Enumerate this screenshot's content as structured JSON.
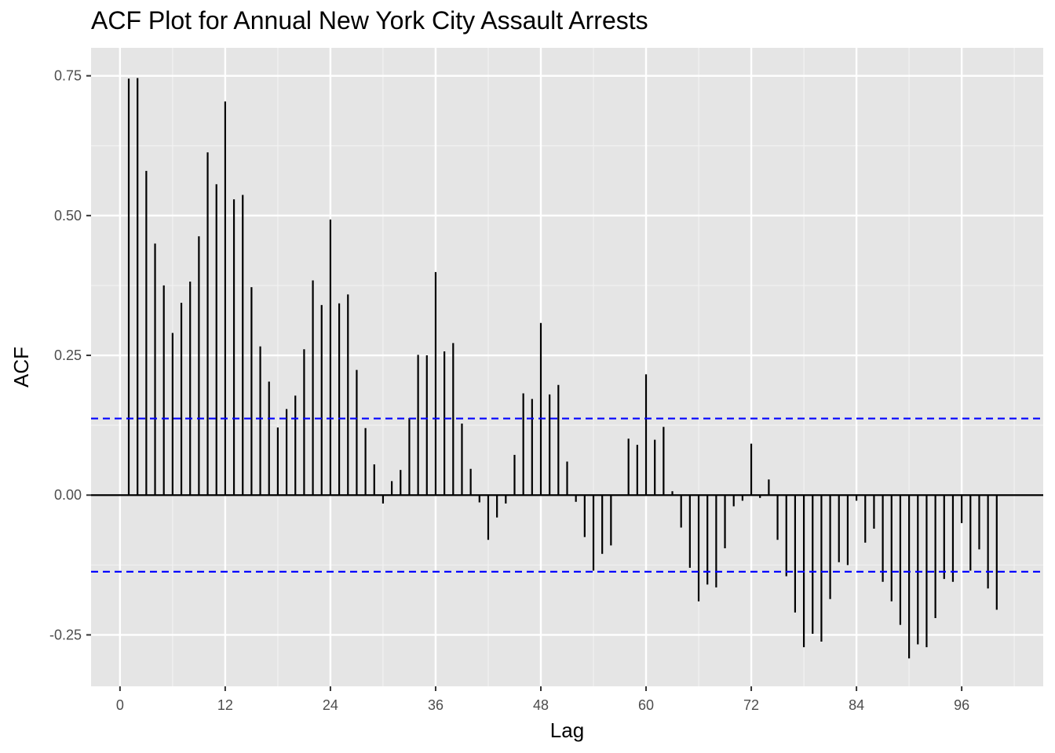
{
  "chart_data": {
    "type": "bar",
    "title": "ACF Plot for Annual New York City Assault Arrests",
    "xlabel": "Lag",
    "ylabel": "ACF",
    "xlim": [
      -3.3,
      105.3
    ],
    "ylim": [
      -0.342,
      0.8
    ],
    "x_ticks": [
      0,
      12,
      24,
      36,
      48,
      60,
      72,
      84,
      96
    ],
    "x_tick_labels": [
      "0",
      "12",
      "24",
      "36",
      "48",
      "60",
      "72",
      "84",
      "96"
    ],
    "y_ticks": [
      -0.25,
      0,
      0.25,
      0.5,
      0.75
    ],
    "y_tick_labels": [
      "-0.25",
      "0.00",
      "0.25",
      "0.50",
      "0.75"
    ],
    "confidence_bounds": [
      0.137,
      -0.137
    ],
    "grid": true,
    "lags": [
      1,
      2,
      3,
      4,
      5,
      6,
      7,
      8,
      9,
      10,
      11,
      12,
      13,
      14,
      15,
      16,
      17,
      18,
      19,
      20,
      21,
      22,
      23,
      24,
      25,
      26,
      27,
      28,
      29,
      30,
      31,
      32,
      33,
      34,
      35,
      36,
      37,
      38,
      39,
      40,
      41,
      42,
      43,
      44,
      45,
      46,
      47,
      48,
      49,
      50,
      51,
      52,
      53,
      54,
      55,
      56,
      57,
      58,
      59,
      60,
      61,
      62,
      63,
      64,
      65,
      66,
      67,
      68,
      69,
      70,
      71,
      72,
      73,
      74,
      75,
      76,
      77,
      78,
      79,
      80,
      81,
      82,
      83,
      84,
      85,
      86,
      87,
      88,
      89,
      90,
      91,
      92,
      93,
      94,
      95,
      96,
      97,
      98,
      99,
      100
    ],
    "values": [
      0.745,
      0.746,
      0.58,
      0.45,
      0.375,
      0.29,
      0.344,
      0.382,
      0.463,
      0.613,
      0.556,
      0.704,
      0.529,
      0.537,
      0.372,
      0.266,
      0.203,
      0.121,
      0.154,
      0.178,
      0.261,
      0.384,
      0.34,
      0.493,
      0.343,
      0.359,
      0.224,
      0.12,
      0.055,
      -0.015,
      0.025,
      0.045,
      0.138,
      0.251,
      0.25,
      0.399,
      0.257,
      0.272,
      0.128,
      0.047,
      -0.013,
      -0.08,
      -0.04,
      -0.015,
      0.072,
      0.182,
      0.172,
      0.308,
      0.18,
      0.197,
      0.06,
      -0.012,
      -0.075,
      -0.135,
      -0.105,
      -0.09,
      0.0,
      0.101,
      0.09,
      0.216,
      0.099,
      0.122,
      0.007,
      -0.058,
      -0.13,
      -0.19,
      -0.16,
      -0.165,
      -0.095,
      -0.02,
      -0.01,
      0.092,
      -0.005,
      0.028,
      -0.08,
      -0.145,
      -0.21,
      -0.272,
      -0.248,
      -0.262,
      -0.186,
      -0.12,
      -0.125,
      -0.01,
      -0.085,
      -0.06,
      -0.155,
      -0.19,
      -0.232,
      -0.292,
      -0.267,
      -0.272,
      -0.22,
      -0.15,
      -0.155,
      -0.05,
      -0.135,
      -0.097,
      -0.167,
      -0.205
    ]
  },
  "colors": {
    "panel_background": "#e5e5e5",
    "grid_major": "#ffffff",
    "grid_minor": "#f2f2f2",
    "bar": "#000000",
    "confidence_line": "#0000ff",
    "tick_label": "#4d4d4d"
  }
}
